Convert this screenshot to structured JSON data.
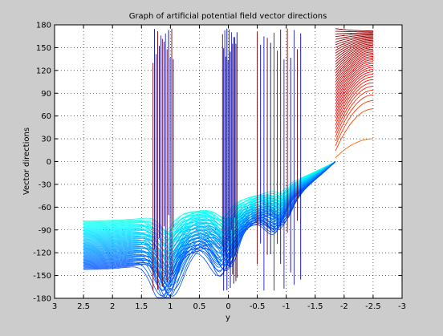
{
  "window": {
    "background": "#cccccc",
    "axes_background": "#ffffff"
  },
  "chart_data": {
    "type": "line",
    "title": "Graph of artificial potential field vector directions",
    "xlabel": "y",
    "ylabel": "Vector directions",
    "xlim": [
      3,
      -3
    ],
    "x_reversed": true,
    "ylim": [
      -180,
      180
    ],
    "xticks": [
      3,
      2.5,
      2,
      1.5,
      1,
      0.5,
      0,
      -0.5,
      -1,
      -1.5,
      -2,
      -2.5,
      -3
    ],
    "xtick_labels": [
      "3",
      "2.5",
      "2",
      "1.5",
      "1",
      "0.5",
      "0",
      "-0.5",
      "-1",
      "-1.5",
      "-2",
      "-2.5",
      "-3"
    ],
    "yticks": [
      180,
      150,
      120,
      90,
      60,
      30,
      0,
      -30,
      -60,
      -90,
      -120,
      -150,
      -180
    ],
    "ytick_labels": [
      "180",
      "150",
      "120",
      "90",
      "60",
      "30",
      "0",
      "-30",
      "-60",
      "-90",
      "-120",
      "-150",
      "-180"
    ],
    "grid": true,
    "grid_style": "dotted",
    "colormap": "jet",
    "series_count": 60,
    "x_range": [
      2.5,
      -1.85
    ],
    "start_values": [
      -78,
      -142
    ],
    "upper_band": {
      "x_range": [
        -1.85,
        -2.5
      ],
      "values_at_break": [
        5,
        175
      ],
      "values_at_end": [
        30,
        172
      ]
    },
    "convergence": {
      "x": -1.85,
      "value": 0
    },
    "obstacles": [
      {
        "center_x": 1.05,
        "spike_range": [
          1.3,
          0.95
        ]
      },
      {
        "center_x": 0.05,
        "spike_range": [
          0.1,
          -0.15
        ]
      },
      {
        "center_x": -0.9,
        "spike_range": [
          -0.5,
          -1.25
        ]
      }
    ]
  }
}
